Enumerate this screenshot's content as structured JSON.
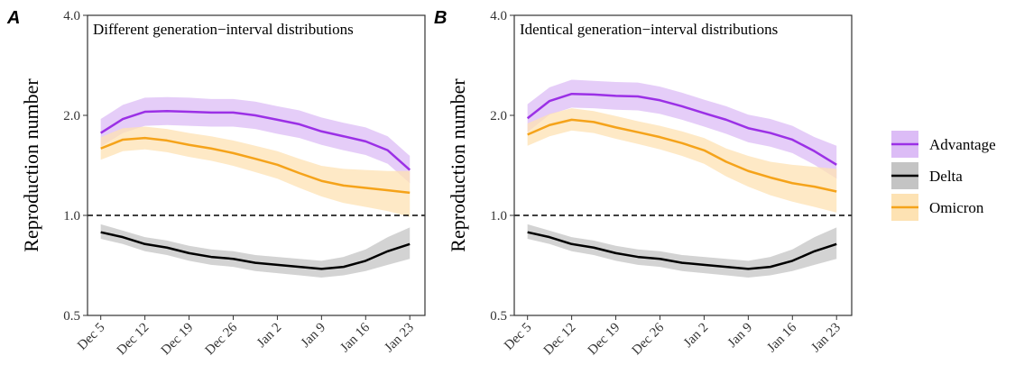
{
  "chart_data": [
    {
      "type": "line",
      "tag": "A",
      "title": "Different generation−interval distributions",
      "ylabel": "Reproduction number",
      "x": [
        0,
        3.5,
        7,
        10.5,
        14,
        17.5,
        21,
        24.5,
        28,
        31.5,
        35,
        38.5,
        42,
        45.5,
        49
      ],
      "xlim": [
        -2.1,
        51.4
      ],
      "xticks": [
        {
          "value": 0,
          "label": "Dec 5"
        },
        {
          "value": 7,
          "label": "Dec 12"
        },
        {
          "value": 14,
          "label": "Dec 19"
        },
        {
          "value": 21,
          "label": "Dec 26"
        },
        {
          "value": 28,
          "label": "Jan 2"
        },
        {
          "value": 35,
          "label": "Jan 9"
        },
        {
          "value": 42,
          "label": "Jan 16"
        },
        {
          "value": 49,
          "label": "Jan 23"
        }
      ],
      "ylim": [
        0.5,
        4.0
      ],
      "log_y": true,
      "yticks": [
        0.5,
        {
          "value": 1,
          "label": "1.0"
        },
        {
          "value": 2,
          "label": "2.0"
        },
        {
          "value": 4,
          "label": "4.0"
        }
      ],
      "hline": 1,
      "series": [
        {
          "name": "Advantage",
          "color": "#9b30e6",
          "fill": "#dcbcf6",
          "values": [
            1.77,
            1.95,
            2.05,
            2.06,
            2.05,
            2.04,
            2.04,
            2.0,
            1.94,
            1.88,
            1.79,
            1.73,
            1.67,
            1.57,
            1.37
          ],
          "lower": [
            1.61,
            1.77,
            1.86,
            1.87,
            1.86,
            1.85,
            1.85,
            1.82,
            1.76,
            1.71,
            1.63,
            1.57,
            1.52,
            1.43,
            1.25
          ],
          "upper": [
            1.95,
            2.15,
            2.26,
            2.27,
            2.26,
            2.24,
            2.24,
            2.2,
            2.13,
            2.07,
            1.97,
            1.9,
            1.84,
            1.73,
            1.51
          ]
        },
        {
          "name": "Delta",
          "color": "#000000",
          "fill": "#c4c4c4",
          "values": [
            0.89,
            0.86,
            0.82,
            0.8,
            0.77,
            0.75,
            0.74,
            0.72,
            0.71,
            0.7,
            0.69,
            0.7,
            0.73,
            0.78,
            0.82
          ],
          "lower": [
            0.85,
            0.82,
            0.78,
            0.76,
            0.73,
            0.71,
            0.7,
            0.68,
            0.67,
            0.66,
            0.65,
            0.66,
            0.68,
            0.71,
            0.74
          ],
          "upper": [
            0.94,
            0.9,
            0.86,
            0.84,
            0.81,
            0.79,
            0.78,
            0.76,
            0.75,
            0.74,
            0.73,
            0.75,
            0.79,
            0.86,
            0.92
          ]
        },
        {
          "name": "Omicron",
          "color": "#f5a31a",
          "fill": "#fde2b3",
          "values": [
            1.59,
            1.69,
            1.71,
            1.68,
            1.63,
            1.59,
            1.54,
            1.48,
            1.42,
            1.34,
            1.27,
            1.23,
            1.21,
            1.19,
            1.17
          ],
          "lower": [
            1.47,
            1.56,
            1.58,
            1.55,
            1.5,
            1.46,
            1.41,
            1.35,
            1.29,
            1.21,
            1.14,
            1.09,
            1.06,
            1.03,
            0.99
          ],
          "upper": [
            1.72,
            1.83,
            1.85,
            1.82,
            1.77,
            1.73,
            1.68,
            1.62,
            1.56,
            1.48,
            1.41,
            1.38,
            1.37,
            1.36,
            1.36
          ]
        }
      ]
    },
    {
      "type": "line",
      "tag": "B",
      "title": "Identical generation−interval distributions",
      "ylabel": "Reproduction number",
      "x": [
        0,
        3.5,
        7,
        10.5,
        14,
        17.5,
        21,
        24.5,
        28,
        31.5,
        35,
        38.5,
        42,
        45.5,
        49
      ],
      "xlim": [
        -2.1,
        51.4
      ],
      "xticks": [
        {
          "value": 0,
          "label": "Dec 5"
        },
        {
          "value": 7,
          "label": "Dec 12"
        },
        {
          "value": 14,
          "label": "Dec 19"
        },
        {
          "value": 21,
          "label": "Dec 26"
        },
        {
          "value": 28,
          "label": "Jan 2"
        },
        {
          "value": 35,
          "label": "Jan 9"
        },
        {
          "value": 42,
          "label": "Jan 16"
        },
        {
          "value": 49,
          "label": "Jan 23"
        }
      ],
      "ylim": [
        0.5,
        4.0
      ],
      "log_y": true,
      "yticks": [
        0.5,
        {
          "value": 1,
          "label": "1.0"
        },
        {
          "value": 2,
          "label": "2.0"
        },
        {
          "value": 4,
          "label": "4.0"
        }
      ],
      "hline": 1,
      "series": [
        {
          "name": "Advantage",
          "color": "#9b30e6",
          "fill": "#dcbcf6",
          "values": [
            1.96,
            2.21,
            2.32,
            2.31,
            2.29,
            2.28,
            2.22,
            2.13,
            2.03,
            1.94,
            1.83,
            1.77,
            1.69,
            1.56,
            1.42
          ],
          "lower": [
            1.78,
            2.01,
            2.11,
            2.1,
            2.08,
            2.07,
            2.02,
            1.94,
            1.85,
            1.76,
            1.66,
            1.61,
            1.54,
            1.42,
            1.29
          ],
          "upper": [
            2.16,
            2.43,
            2.56,
            2.54,
            2.52,
            2.51,
            2.44,
            2.34,
            2.23,
            2.13,
            2.01,
            1.95,
            1.86,
            1.72,
            1.62
          ]
        },
        {
          "name": "Delta",
          "color": "#000000",
          "fill": "#c4c4c4",
          "values": [
            0.89,
            0.86,
            0.82,
            0.8,
            0.77,
            0.75,
            0.74,
            0.72,
            0.71,
            0.7,
            0.69,
            0.7,
            0.73,
            0.78,
            0.82
          ],
          "lower": [
            0.85,
            0.82,
            0.78,
            0.76,
            0.73,
            0.71,
            0.7,
            0.68,
            0.67,
            0.66,
            0.65,
            0.66,
            0.68,
            0.71,
            0.74
          ],
          "upper": [
            0.94,
            0.9,
            0.86,
            0.84,
            0.81,
            0.79,
            0.78,
            0.76,
            0.75,
            0.74,
            0.73,
            0.75,
            0.79,
            0.86,
            0.92
          ]
        },
        {
          "name": "Omicron",
          "color": "#f5a31a",
          "fill": "#fde2b3",
          "values": [
            1.75,
            1.87,
            1.94,
            1.91,
            1.84,
            1.78,
            1.72,
            1.65,
            1.57,
            1.45,
            1.36,
            1.3,
            1.25,
            1.22,
            1.18
          ],
          "lower": [
            1.62,
            1.73,
            1.8,
            1.77,
            1.7,
            1.64,
            1.58,
            1.51,
            1.43,
            1.31,
            1.22,
            1.15,
            1.1,
            1.06,
            1.02
          ],
          "upper": [
            1.89,
            2.02,
            2.1,
            2.06,
            1.99,
            1.92,
            1.86,
            1.79,
            1.71,
            1.59,
            1.51,
            1.45,
            1.42,
            1.4,
            1.38
          ]
        }
      ]
    }
  ]
}
